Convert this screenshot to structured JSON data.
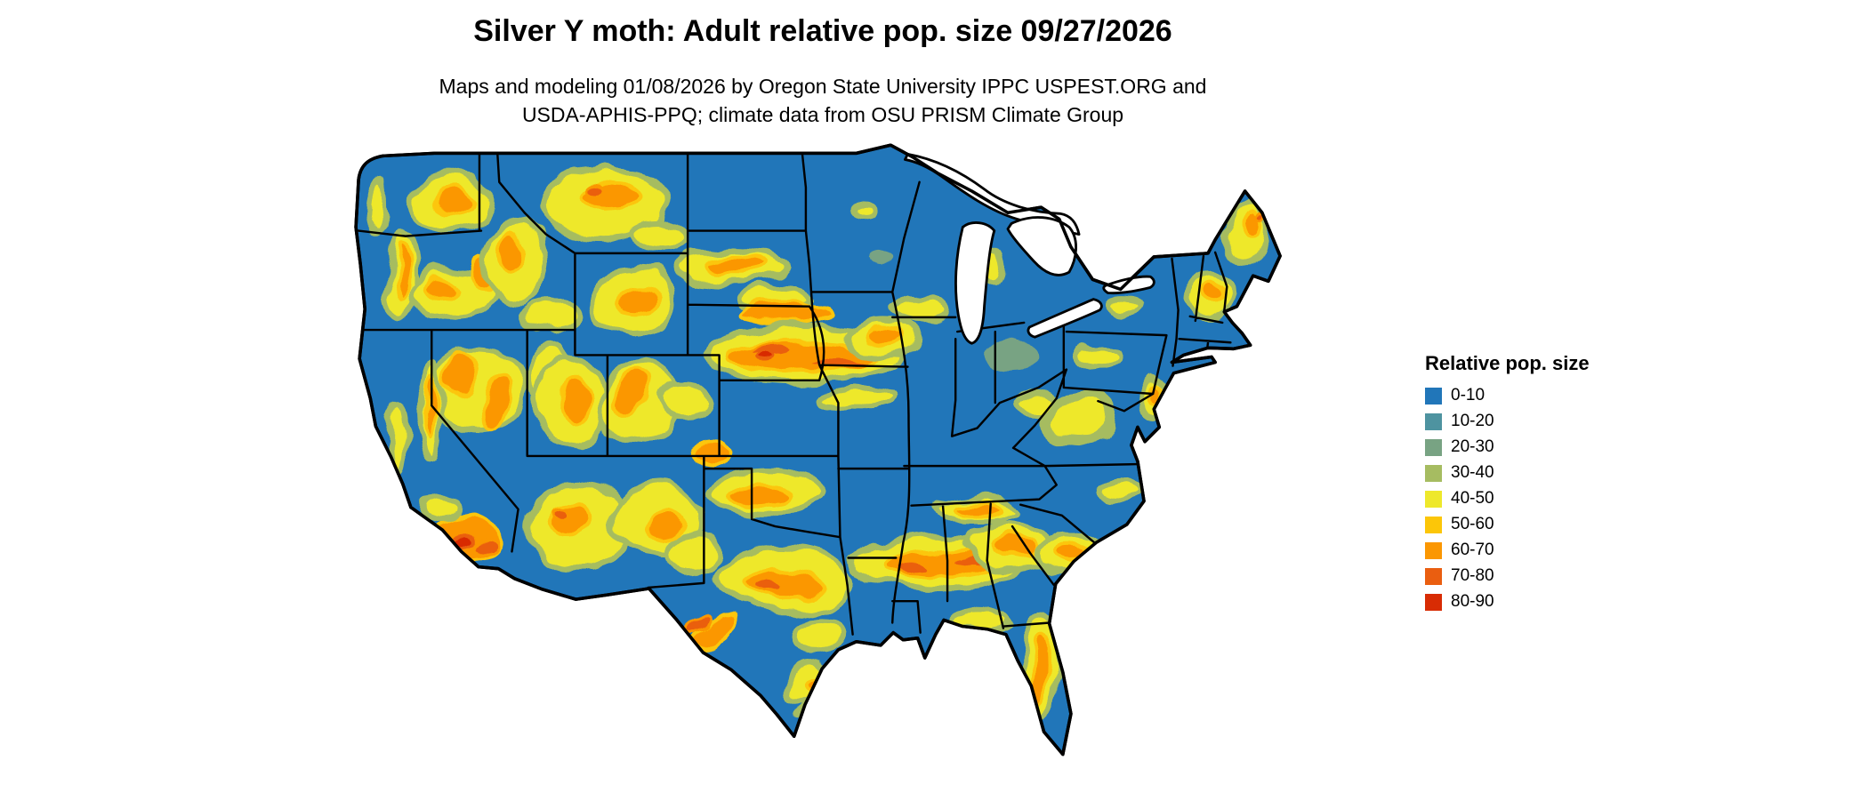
{
  "page": {
    "title": "Silver Y moth: Adult relative pop. size 09/27/2026",
    "subtitle_line1": "Maps and modeling 01/08/2026 by Oregon State University IPPC USPEST.ORG and",
    "subtitle_line2": "USDA-APHIS-PPQ; climate data from OSU PRISM Climate Group"
  },
  "map": {
    "name": "Continental US relative population size raster map",
    "base_color": "#2176b9",
    "border_color": "#000000"
  },
  "legend": {
    "title": "Relative pop. size",
    "entries": [
      {
        "label": "0-10",
        "color": "#2176b9"
      },
      {
        "label": "10-20",
        "color": "#4e93a0"
      },
      {
        "label": "20-30",
        "color": "#78a383"
      },
      {
        "label": "30-40",
        "color": "#a6bc61"
      },
      {
        "label": "40-50",
        "color": "#eee82b"
      },
      {
        "label": "50-60",
        "color": "#fcc608"
      },
      {
        "label": "60-70",
        "color": "#fb9702"
      },
      {
        "label": "70-80",
        "color": "#ea5e10"
      },
      {
        "label": "80-90",
        "color": "#d82c04"
      }
    ]
  }
}
